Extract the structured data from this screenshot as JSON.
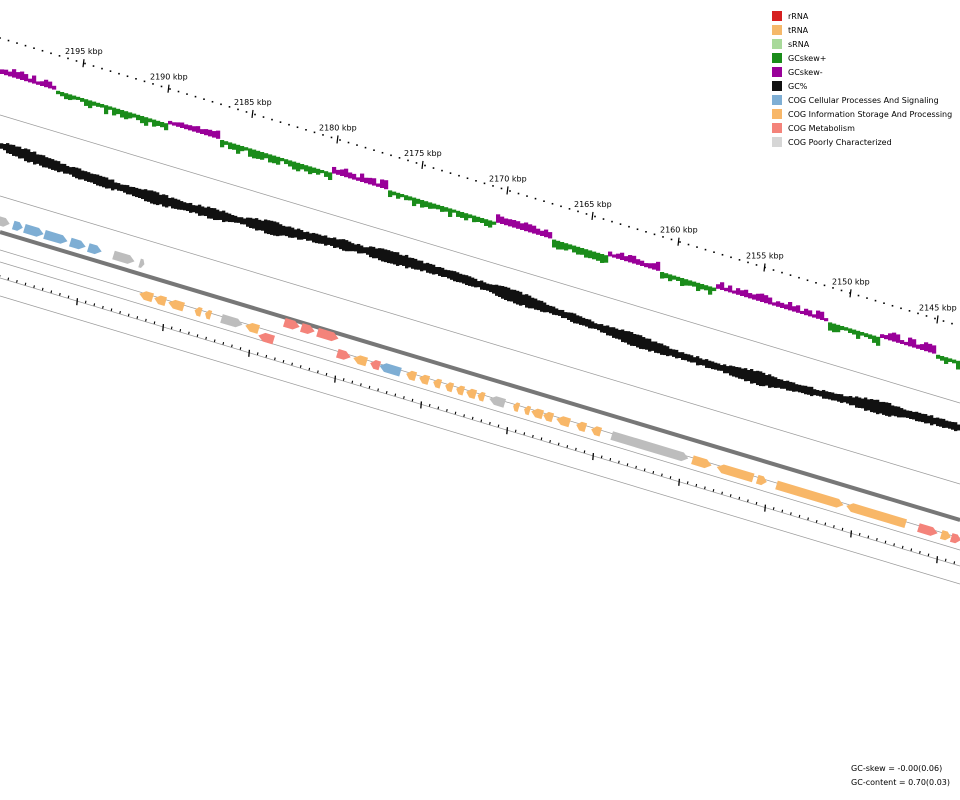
{
  "legend": {
    "items": [
      {
        "label": "rRNA",
        "color": "#d62020"
      },
      {
        "label": "tRNA",
        "color": "#f5b86a"
      },
      {
        "label": "sRNA",
        "color": "#a8d99a"
      },
      {
        "label": "GCskew+",
        "color": "#1a8c1a"
      },
      {
        "label": "GCskew-",
        "color": "#990099"
      },
      {
        "label": "GC%",
        "color": "#111111"
      },
      {
        "label": "COG Cellular Processes And Signaling",
        "color": "#7eaed4"
      },
      {
        "label": "COG Information Storage And Processing",
        "color": "#f8b768"
      },
      {
        "label": "COG Metabolism",
        "color": "#f4837a"
      },
      {
        "label": "COG Poorly Characterized",
        "color": "#d6d6d6"
      }
    ]
  },
  "ruler": {
    "labels": [
      "2195 kbp",
      "2190 kbp",
      "2185 kbp",
      "2180 kbp",
      "2175 kbp",
      "2170 kbp",
      "2165 kbp",
      "2160 kbp",
      "2155 kbp",
      "2150 kbp",
      "2145 kbp"
    ]
  },
  "footer": {
    "gc_skew": "GC-skew = -0.00(0.06)",
    "gc_content": "GC-content = 0.70(0.03)"
  },
  "colors": {
    "skew_pos": "#1a8c1a",
    "skew_neg": "#990099",
    "gc": "#111111",
    "backbone": "#777777",
    "guide": "#999999",
    "cog_cellular": "#7eaed4",
    "cog_info": "#f8b768",
    "cog_metab": "#f4837a",
    "cog_poor": "#bdbdbd"
  },
  "features_plus": [
    {
      "cog": "poor"
    },
    {
      "cog": "cellular"
    },
    {
      "cog": "cellular"
    },
    {
      "cog": "cellular"
    },
    {
      "cog": "cellular"
    },
    {
      "cog": "cellular"
    },
    {
      "cog": "poor"
    },
    {
      "cog": "poor"
    }
  ],
  "features_minus": [
    {
      "cog": "info"
    },
    {
      "cog": "info"
    },
    {
      "cog": "info"
    },
    {
      "cog": "info"
    },
    {
      "cog": "info"
    },
    {
      "cog": "poor"
    },
    {
      "cog": "info"
    },
    {
      "cog": "metab"
    },
    {
      "cog": "metab"
    },
    {
      "cog": "metab"
    },
    {
      "cog": "metab"
    },
    {
      "cog": "metab"
    },
    {
      "cog": "info"
    },
    {
      "cog": "metab"
    },
    {
      "cog": "cellular"
    },
    {
      "cog": "info"
    },
    {
      "cog": "info"
    },
    {
      "cog": "info"
    },
    {
      "cog": "info"
    },
    {
      "cog": "info"
    },
    {
      "cog": "info"
    },
    {
      "cog": "info"
    },
    {
      "cog": "poor"
    },
    {
      "cog": "info"
    },
    {
      "cog": "info"
    },
    {
      "cog": "info"
    },
    {
      "cog": "info"
    },
    {
      "cog": "info"
    },
    {
      "cog": "info"
    },
    {
      "cog": "info"
    },
    {
      "cog": "poor"
    },
    {
      "cog": "info"
    },
    {
      "cog": "info"
    },
    {
      "cog": "info"
    },
    {
      "cog": "info"
    },
    {
      "cog": "info"
    },
    {
      "cog": "metab"
    },
    {
      "cog": "info"
    },
    {
      "cog": "metab"
    }
  ]
}
